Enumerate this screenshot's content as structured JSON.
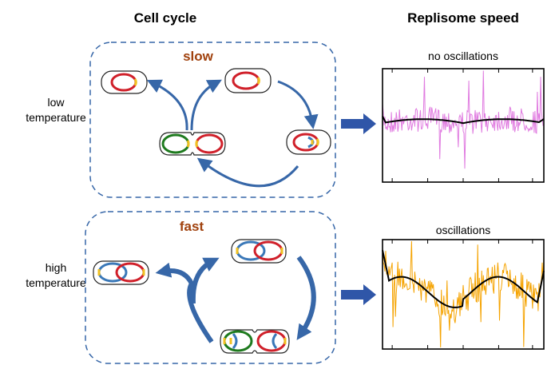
{
  "headers": {
    "cell_cycle": "Cell cycle",
    "replisome_speed": "Replisome speed"
  },
  "rows": [
    {
      "condition_line1": "low",
      "condition_line2": "temperature",
      "speed_label": "slow",
      "plot_title": "no oscillations",
      "noise_color": "#e07be0"
    },
    {
      "condition_line1": "high",
      "condition_line2": "temperature",
      "speed_label": "fast",
      "plot_title": "oscillations",
      "noise_color": "#f5a300"
    }
  ],
  "colors": {
    "arrow": "#3767a8",
    "panel_border": "#3767a8",
    "speed_label": "#a0410d",
    "chromosome_old": "#d0202a",
    "chromosome_new": "#3a78b8",
    "chromosome_daughter": "#1e7a1e",
    "origin": "#f0c020",
    "fit_curve": "#000000"
  }
}
